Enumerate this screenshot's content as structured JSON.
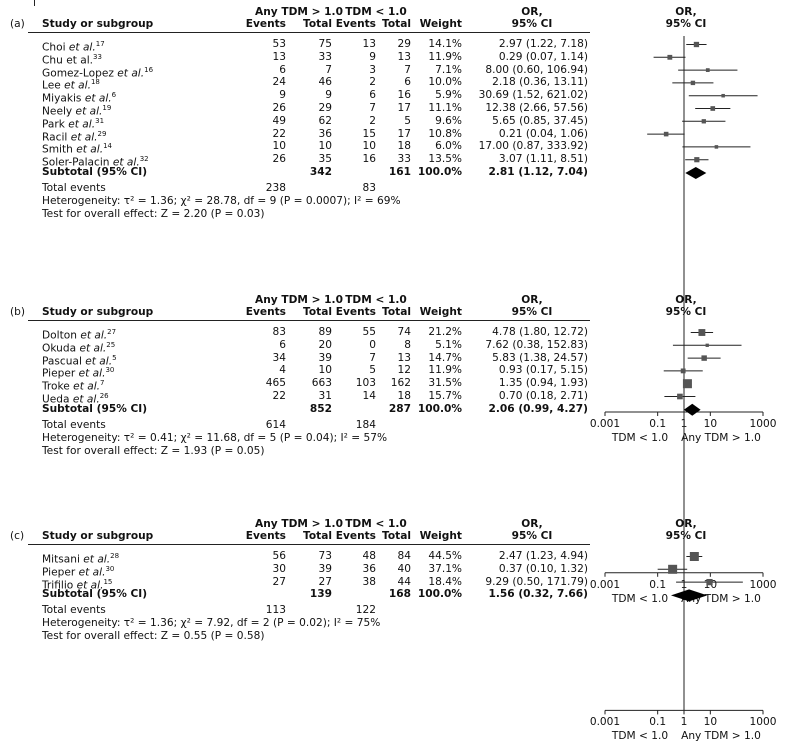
{
  "headers": {
    "study": "Study or subgroup",
    "any_group": "Any TDM > 1.0",
    "tdm_group": "TDM < 1.0",
    "events": "Events",
    "total": "Total",
    "weight": "Weight",
    "or_line1": "OR,",
    "or_line2": "95% CI",
    "plot_line1": "OR,",
    "plot_line2": "95% CI"
  },
  "axis": {
    "ticks": [
      "0.001",
      "0.1",
      "1",
      "10",
      "1000"
    ],
    "tick_values": [
      0.001,
      0.1,
      1,
      10,
      1000
    ],
    "left_label": "TDM < 1.0",
    "right_label": "Any TDM > 1.0",
    "scale": "log"
  },
  "colors": {
    "marker": "#555555",
    "line": "#222222",
    "diamond": "#000000"
  },
  "chart_data": [
    {
      "type": "forest",
      "panel_label": "(a)",
      "studies": [
        {
          "name": "Choi ",
          "etal": "et al.",
          "ref": "17",
          "e1": "53",
          "t1": "75",
          "e2": "13",
          "t2": "29",
          "weight": "14.1%",
          "ci": "2.97 (1.22, 7.18)",
          "or": 2.97,
          "lo": 1.22,
          "hi": 7.18
        },
        {
          "name": "Chu et al.",
          "etal": "",
          "ref": "33",
          "e1": "13",
          "t1": "33",
          "e2": "9",
          "t2": "13",
          "weight": "11.9%",
          "ci": "0.29 (0.07, 1.14)",
          "or": 0.29,
          "lo": 0.07,
          "hi": 1.14
        },
        {
          "name": "Gomez-Lopez ",
          "etal": "et al.",
          "ref": "16",
          "e1": "6",
          "t1": "7",
          "e2": "3",
          "t2": "7",
          "weight": "7.1%",
          "ci": "8.00 (0.60, 106.94)",
          "or": 8.0,
          "lo": 0.6,
          "hi": 106.94
        },
        {
          "name": "Lee ",
          "etal": "et al.",
          "ref": "18",
          "e1": "24",
          "t1": "46",
          "e2": "2",
          "t2": "6",
          "weight": "10.0%",
          "ci": "2.18 (0.36, 13.11)",
          "or": 2.18,
          "lo": 0.36,
          "hi": 13.11
        },
        {
          "name": "Miyakis ",
          "etal": "et al.",
          "ref": "6",
          "e1": "9",
          "t1": "9",
          "e2": "6",
          "t2": "16",
          "weight": "5.9%",
          "ci": "30.69 (1.52, 621.02)",
          "or": 30.69,
          "lo": 1.52,
          "hi": 621.02
        },
        {
          "name": "Neely ",
          "etal": "et al.",
          "ref": "19",
          "e1": "26",
          "t1": "29",
          "e2": "7",
          "t2": "17",
          "weight": "11.1%",
          "ci": "12.38 (2.66, 57.56)",
          "or": 12.38,
          "lo": 2.66,
          "hi": 57.56
        },
        {
          "name": "Park ",
          "etal": "et al.",
          "ref": "31",
          "e1": "49",
          "t1": "62",
          "e2": "2",
          "t2": "5",
          "weight": "9.6%",
          "ci": "5.65 (0.85, 37.45)",
          "or": 5.65,
          "lo": 0.85,
          "hi": 37.45
        },
        {
          "name": "Racil ",
          "etal": "et al.",
          "ref": "29",
          "e1": "22",
          "t1": "36",
          "e2": "15",
          "t2": "17",
          "weight": "10.8%",
          "ci": "0.21 (0.04, 1.06)",
          "or": 0.21,
          "lo": 0.04,
          "hi": 1.06
        },
        {
          "name": "Smith ",
          "etal": "et al.",
          "ref": "14",
          "e1": "10",
          "t1": "10",
          "e2": "10",
          "t2": "18",
          "weight": "6.0%",
          "ci": "17.00 (0.87, 333.92)",
          "or": 17.0,
          "lo": 0.87,
          "hi": 333.92
        },
        {
          "name": "Soler-Palacin ",
          "etal": "et al.",
          "ref": "32",
          "e1": "26",
          "t1": "35",
          "e2": "16",
          "t2": "33",
          "weight": "13.5%",
          "ci": "3.07 (1.11, 8.51)",
          "or": 3.07,
          "lo": 1.11,
          "hi": 8.51
        }
      ],
      "subtotal": {
        "label": "Subtotal (95% CI)",
        "t1": "342",
        "t2": "161",
        "weight": "100.0%",
        "ci": "2.81 (1.12, 7.04)",
        "or": 2.81,
        "lo": 1.12,
        "hi": 7.04
      },
      "total_events": {
        "label": "Total events",
        "e1": "238",
        "e2": "83"
      },
      "heterogeneity": "Heterogeneity: τ² = 1.36; χ² = 28.78, df = 9 (P = 0.0007); I² = 69%",
      "overall_effect": "Test for overall effect: Z = 2.20 (P = 0.03)"
    },
    {
      "type": "forest",
      "panel_label": "(b)",
      "studies": [
        {
          "name": "Dolton ",
          "etal": "et al.",
          "ref": "27",
          "e1": "83",
          "t1": "89",
          "e2": "55",
          "t2": "74",
          "weight": "21.2%",
          "ci": "4.78 (1.80, 12.72)",
          "or": 4.78,
          "lo": 1.8,
          "hi": 12.72
        },
        {
          "name": "Okuda ",
          "etal": "et al.",
          "ref": "25",
          "e1": "6",
          "t1": "20",
          "e2": "0",
          "t2": "8",
          "weight": "5.1%",
          "ci": "7.62 (0.38, 152.83)",
          "or": 7.62,
          "lo": 0.38,
          "hi": 152.83
        },
        {
          "name": "Pascual ",
          "etal": "et al.",
          "ref": "5",
          "e1": "34",
          "t1": "39",
          "e2": "7",
          "t2": "13",
          "weight": "14.7%",
          "ci": "5.83 (1.38, 24.57)",
          "or": 5.83,
          "lo": 1.38,
          "hi": 24.57
        },
        {
          "name": "Pieper ",
          "etal": "et al.",
          "ref": "30",
          "e1": "4",
          "t1": "10",
          "e2": "5",
          "t2": "12",
          "weight": "11.9%",
          "ci": "0.93 (0.17, 5.15)",
          "or": 0.93,
          "lo": 0.17,
          "hi": 5.15
        },
        {
          "name": "Troke ",
          "etal": "et al.",
          "ref": "7",
          "e1": "465",
          "t1": "663",
          "e2": "103",
          "t2": "162",
          "weight": "31.5%",
          "ci": "1.35 (0.94, 1.93)",
          "or": 1.35,
          "lo": 0.94,
          "hi": 1.93
        },
        {
          "name": "Ueda ",
          "etal": "et al.",
          "ref": "26",
          "e1": "22",
          "t1": "31",
          "e2": "14",
          "t2": "18",
          "weight": "15.7%",
          "ci": "0.70 (0.18, 2.71)",
          "or": 0.7,
          "lo": 0.18,
          "hi": 2.71
        }
      ],
      "subtotal": {
        "label": "Subtotal (95% CI)",
        "t1": "852",
        "t2": "287",
        "weight": "100.0%",
        "ci": "2.06 (0.99, 4.27)",
        "or": 2.06,
        "lo": 0.99,
        "hi": 4.27
      },
      "total_events": {
        "label": "Total events",
        "e1": "614",
        "e2": "184"
      },
      "heterogeneity": "Heterogeneity: τ² = 0.41; χ² = 11.68, df = 5 (P = 0.04); I² = 57%",
      "overall_effect": "Test for overall effect: Z = 1.93 (P = 0.05)"
    },
    {
      "type": "forest",
      "panel_label": "(c)",
      "studies": [
        {
          "name": "Mitsani ",
          "etal": "et al.",
          "ref": "28",
          "e1": "56",
          "t1": "73",
          "e2": "48",
          "t2": "84",
          "weight": "44.5%",
          "ci": "2.47 (1.23, 4.94)",
          "or": 2.47,
          "lo": 1.23,
          "hi": 4.94
        },
        {
          "name": "Pieper ",
          "etal": "et al.",
          "ref": "30",
          "e1": "30",
          "t1": "39",
          "e2": "36",
          "t2": "40",
          "weight": "37.1%",
          "ci": "0.37 (0.10, 1.32)",
          "or": 0.37,
          "lo": 0.1,
          "hi": 1.32
        },
        {
          "name": "Trifilio ",
          "etal": "et al.",
          "ref": "15",
          "e1": "27",
          "t1": "27",
          "e2": "38",
          "t2": "44",
          "weight": "18.4%",
          "ci": "9.29 (0.50, 171.79)",
          "or": 9.29,
          "lo": 0.5,
          "hi": 171.79
        }
      ],
      "subtotal": {
        "label": "Subtotal (95% CI)",
        "t1": "139",
        "t2": "168",
        "weight": "100.0%",
        "ci": "1.56 (0.32, 7.66)",
        "or": 1.56,
        "lo": 0.32,
        "hi": 7.66
      },
      "total_events": {
        "label": "Total events",
        "e1": "113",
        "e2": "122"
      },
      "heterogeneity": "Heterogeneity: τ² = 1.36; χ² = 7.92, df = 2 (P = 0.02); I² = 75%",
      "overall_effect": "Test for overall effect: Z = 0.55 (P = 0.58)"
    }
  ]
}
